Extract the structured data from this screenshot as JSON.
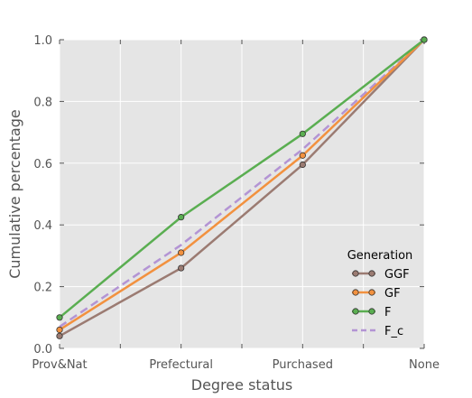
{
  "chart_data": {
    "type": "line",
    "title": "",
    "xlabel": "Degree status",
    "ylabel": "Cumulative percentage",
    "categories": [
      "Prov&Nat",
      "Prefectural",
      "Purchased",
      "None"
    ],
    "ylim": [
      0.0,
      1.0
    ],
    "yticks": [
      "0.0",
      "0.2",
      "0.4",
      "0.6",
      "0.8",
      "1.0"
    ],
    "grid": true,
    "legend": {
      "title": "Generation",
      "placement": "lower-right"
    },
    "series": [
      {
        "name": "GGF",
        "values": [
          0.04,
          0.26,
          0.595,
          1.0
        ],
        "color": "#9b7b72",
        "style": "solid",
        "markers": true
      },
      {
        "name": "GF",
        "values": [
          0.06,
          0.31,
          0.625,
          1.0
        ],
        "color": "#f2913f",
        "style": "solid",
        "markers": true
      },
      {
        "name": "F",
        "values": [
          0.1,
          0.425,
          0.695,
          1.0
        ],
        "color": "#5aae51",
        "style": "solid",
        "markers": true
      },
      {
        "name": "F_c",
        "values": [
          0.07,
          0.335,
          0.645,
          1.0
        ],
        "color": "#b394d4",
        "style": "dashed",
        "markers": false
      }
    ]
  }
}
